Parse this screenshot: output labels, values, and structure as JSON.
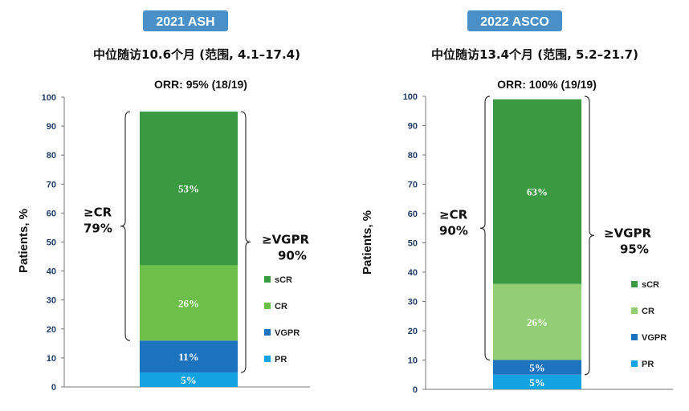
{
  "chart_data": [
    {
      "type": "bar",
      "stacked": true,
      "badge": "2021 ASH",
      "title": "中位随访10.6个月 (范围, 4.1–17.4)",
      "subtitle": "ORR: 95% (18/19)",
      "ylabel": "Patients, %",
      "ylim": [
        0,
        100
      ],
      "yticks": [
        "0",
        "10",
        "20",
        "30",
        "40",
        "50",
        "60",
        "70",
        "80",
        "90",
        "100"
      ],
      "series": [
        {
          "name": "PR",
          "value": 5,
          "label": "5%",
          "color": "#12a3e0"
        },
        {
          "name": "VGPR",
          "value": 11,
          "label": "11%",
          "color": "#1e73be"
        },
        {
          "name": "CR",
          "value": 26,
          "label": "26%",
          "color": "#6dbf4a"
        },
        {
          "name": "sCR",
          "value": 53,
          "label": "53%",
          "color": "#3a9a41"
        }
      ],
      "annotations": {
        "left": {
          "line1": "≥CR",
          "line2": "79%",
          "from": 16,
          "to": 95
        },
        "right": {
          "line1": "≥VGPR",
          "line2": "90%",
          "from": 5,
          "to": 95
        }
      }
    },
    {
      "type": "bar",
      "stacked": true,
      "badge": "2022 ASCO",
      "title": "中位随访13.4个月 (范围, 5.2–21.7)",
      "subtitle": "ORR: 100% (19/19)",
      "ylabel": "Patients, %",
      "ylim": [
        0,
        100
      ],
      "yticks": [
        "0",
        "10",
        "20",
        "30",
        "40",
        "50",
        "60",
        "70",
        "80",
        "90",
        "100"
      ],
      "series": [
        {
          "name": "PR",
          "value": 5,
          "label": "5%",
          "color": "#12a3e0"
        },
        {
          "name": "VGPR",
          "value": 5,
          "label": "5%",
          "color": "#1e73be"
        },
        {
          "name": "CR",
          "value": 26,
          "label": "26%",
          "color": "#92cf74"
        },
        {
          "name": "sCR",
          "value": 63,
          "label": "63%",
          "color": "#3a9a41"
        }
      ],
      "annotations": {
        "left": {
          "line1": "≥CR",
          "line2": "90%",
          "from": 10,
          "to": 100
        },
        "right": {
          "line1": "≥VGPR",
          "line2": "95%",
          "from": 5,
          "to": 100
        }
      }
    }
  ]
}
